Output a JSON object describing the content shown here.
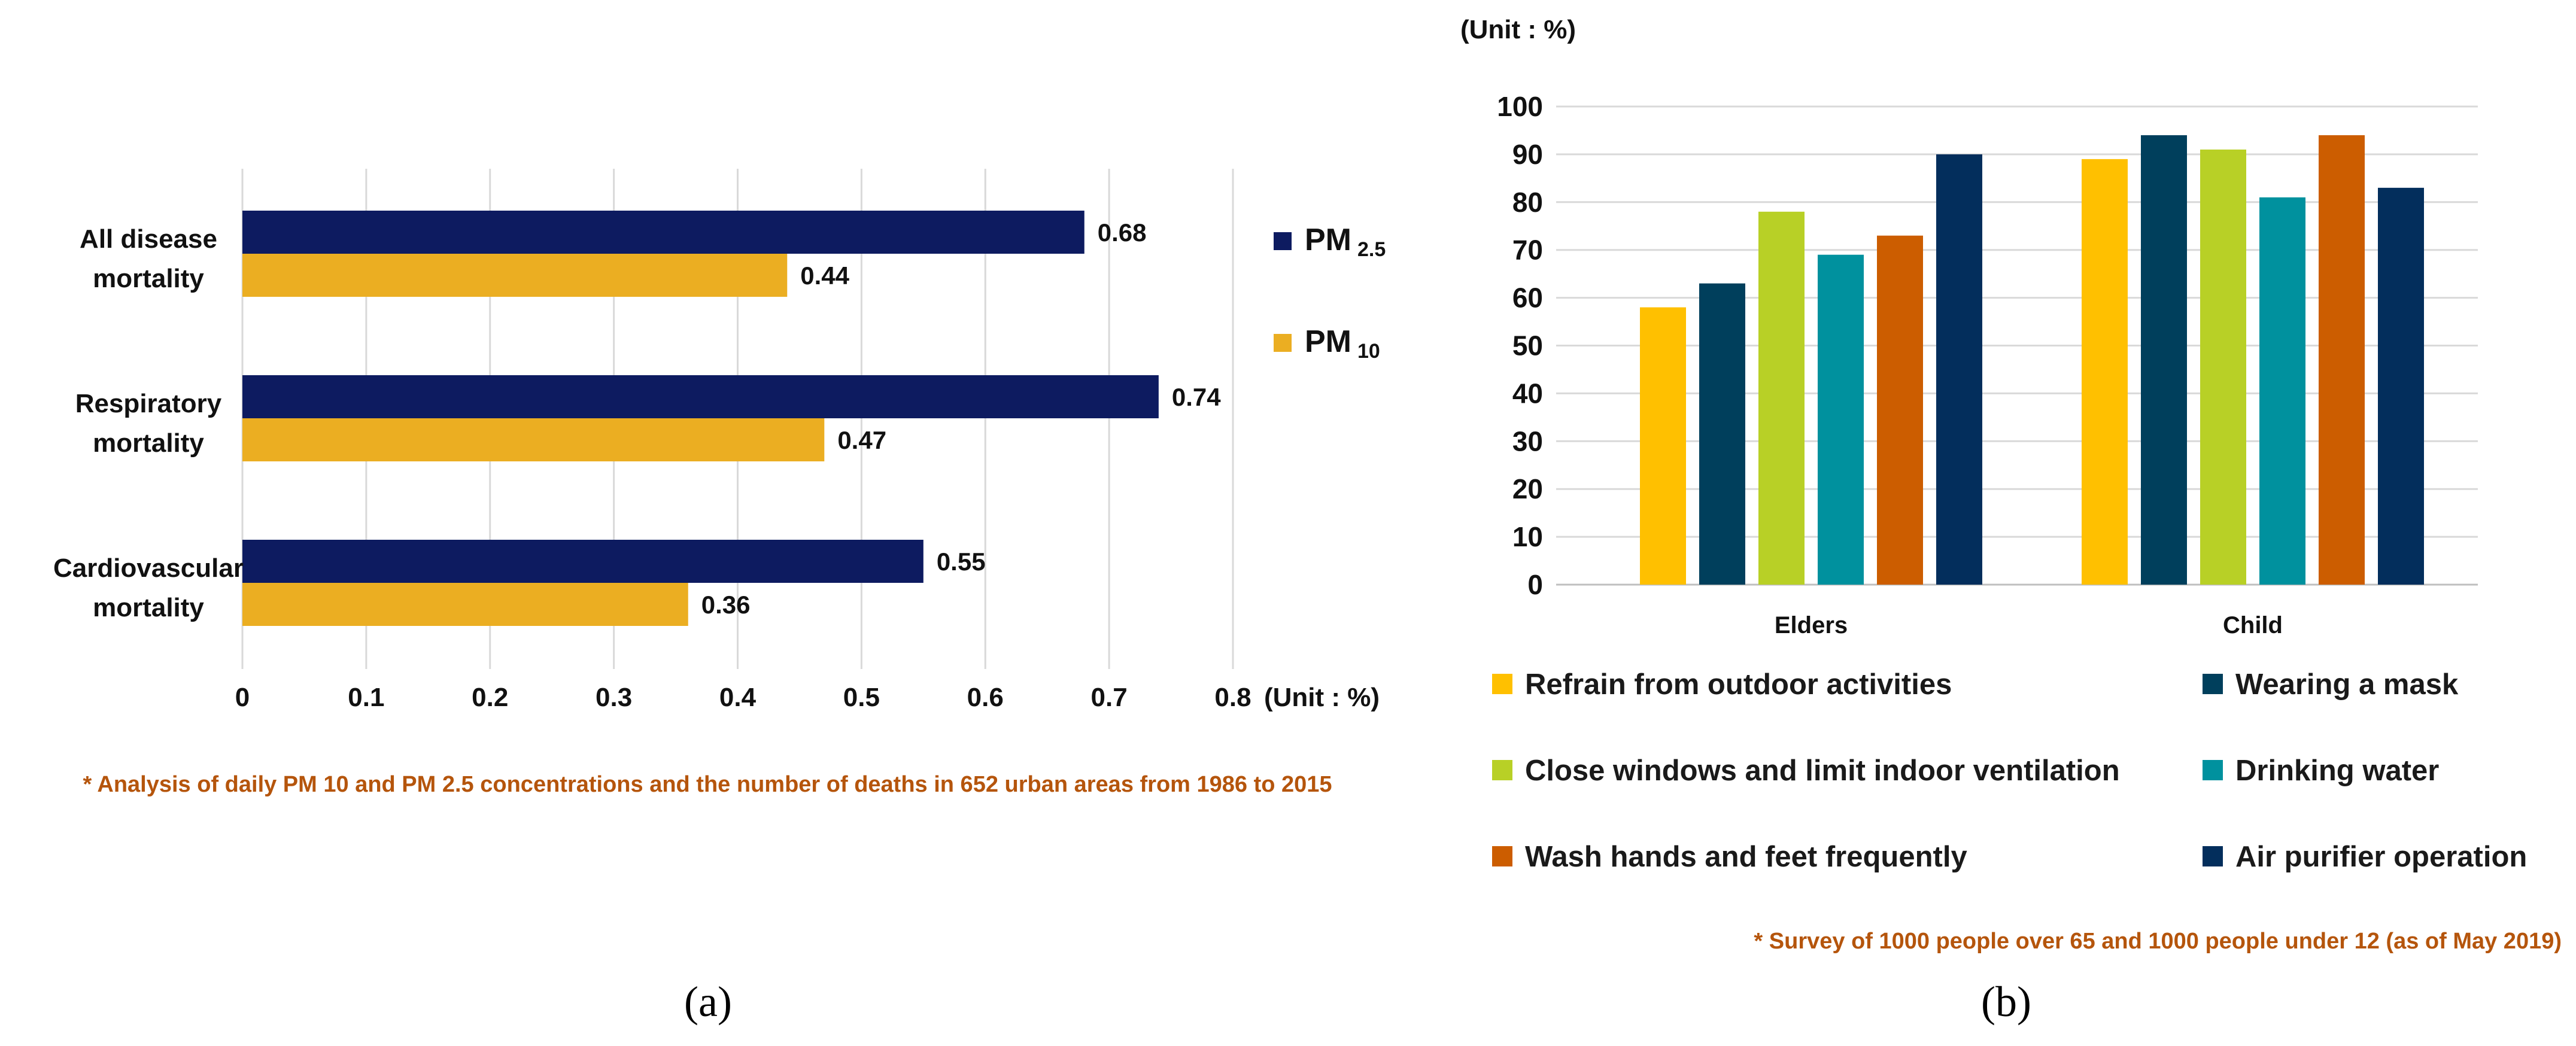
{
  "colors": {
    "pm25": "#0d1b60",
    "pm10": "#ebae22",
    "note": "#b5550c",
    "grid": "#d9d9d9",
    "text": "#111111"
  },
  "chart_data": [
    {
      "id": "a",
      "type": "bar",
      "orientation": "horizontal",
      "caption": "(a)",
      "categories": [
        [
          "All disease",
          "mortality"
        ],
        [
          "Respiratory",
          "mortality"
        ],
        [
          "Cardiovascular",
          "mortality"
        ]
      ],
      "series": [
        {
          "name": "PM 2.5",
          "name_main": "PM",
          "name_sub": "2.5",
          "values": [
            0.68,
            0.74,
            0.55
          ],
          "value_labels": [
            "0.68",
            "0.74",
            "0.55"
          ]
        },
        {
          "name": "PM 10",
          "name_main": "PM",
          "name_sub": "10",
          "values": [
            0.44,
            0.47,
            0.36
          ],
          "value_labels": [
            "0.44",
            "0.47",
            "0.36"
          ]
        }
      ],
      "xlim": [
        0,
        0.8
      ],
      "xticks": [
        0,
        0.1,
        0.2,
        0.3,
        0.4,
        0.5,
        0.6,
        0.7,
        0.8
      ],
      "xtick_labels": [
        "0",
        "0.1",
        "0.2",
        "0.3",
        "0.4",
        "0.5",
        "0.6",
        "0.7",
        "0.8"
      ],
      "unit_label": "(Unit : %)",
      "grid": "vertical",
      "legend_position": "right",
      "note": "* Analysis of daily PM 10 and PM 2.5 concentrations and the number of deaths in 652 urban areas from 1986 to 2015"
    },
    {
      "id": "b",
      "type": "bar",
      "orientation": "vertical",
      "caption": "(b)",
      "unit_label": "(Unit : %)",
      "categories": [
        "Elders",
        "Child"
      ],
      "series": [
        {
          "name": "Refrain from outdoor activities",
          "color": "#ffc000",
          "values": [
            58,
            89
          ]
        },
        {
          "name": "Wearing a mask",
          "color": "#003f5c",
          "values": [
            63,
            94
          ]
        },
        {
          "name": "Close windows and limit indoor ventilation",
          "color": "#b8d026",
          "values": [
            78,
            91
          ]
        },
        {
          "name": "Drinking water",
          "color": "#00919e",
          "values": [
            69,
            81
          ]
        },
        {
          "name": "Wash hands and feet frequently",
          "color": "#cc5d00",
          "values": [
            73,
            94
          ]
        },
        {
          "name": "Air purifier operation",
          "color": "#032e5c",
          "values": [
            90,
            83
          ]
        }
      ],
      "ylim": [
        0,
        100
      ],
      "yticks": [
        0,
        10,
        20,
        30,
        40,
        50,
        60,
        70,
        80,
        90,
        100
      ],
      "ytick_labels": [
        "0",
        "10",
        "20",
        "30",
        "40",
        "50",
        "60",
        "70",
        "80",
        "90",
        "100"
      ],
      "grid": "horizontal",
      "legend_position": "bottom",
      "note": "* Survey of 1000 people over 65 and 1000 people under 12 (as of May 2019)"
    }
  ]
}
